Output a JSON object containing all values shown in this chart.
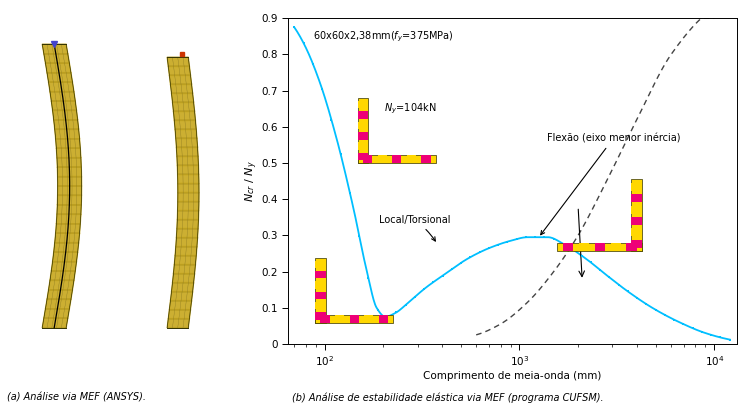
{
  "xlabel": "Comprimento de meia-onda (mm)",
  "ylabel": "N_{cr} / N_{y}",
  "spec_label": "60x60x2,38mm($f_y$=375MPa)",
  "ny_label": "$N_y$=104kN",
  "local_label": "Local/Torsional",
  "flex_label": "Flexão (eixo menor inércia)",
  "caption_a": "(a) Análise via MEF (ANSYS).",
  "caption_b": "(b) Análise de estabilidade elástica via MEF (programa CUFSM).",
  "curve_color": "#00BFFF",
  "dash_color": "#444444",
  "yellow": "#FFD700",
  "magenta": "#EE0077",
  "mesh_fill": "#C8A820",
  "mesh_line": "#888833",
  "stability_pts_x": [
    70,
    80,
    95,
    115,
    140,
    165,
    185,
    205,
    230,
    270,
    330,
    420,
    540,
    700,
    900,
    1100,
    1400,
    1700,
    2200,
    2800,
    3600,
    4800,
    6500,
    9000,
    12000
  ],
  "stability_pts_y": [
    0.875,
    0.82,
    0.72,
    0.57,
    0.38,
    0.2,
    0.1,
    0.075,
    0.085,
    0.115,
    0.155,
    0.195,
    0.235,
    0.265,
    0.285,
    0.295,
    0.295,
    0.275,
    0.235,
    0.19,
    0.145,
    0.1,
    0.062,
    0.03,
    0.012
  ],
  "flex_pts_x": [
    600,
    800,
    1100,
    1500,
    2000,
    2800,
    4000,
    6000,
    9500
  ],
  "flex_pts_y": [
    0.025,
    0.055,
    0.115,
    0.2,
    0.3,
    0.45,
    0.62,
    0.8,
    0.92
  ],
  "ylim": [
    0,
    0.9
  ],
  "yticks": [
    0.0,
    0.1,
    0.2,
    0.3,
    0.4,
    0.5,
    0.6,
    0.7,
    0.8,
    0.9
  ],
  "xticks": [
    100,
    1000,
    10000
  ]
}
